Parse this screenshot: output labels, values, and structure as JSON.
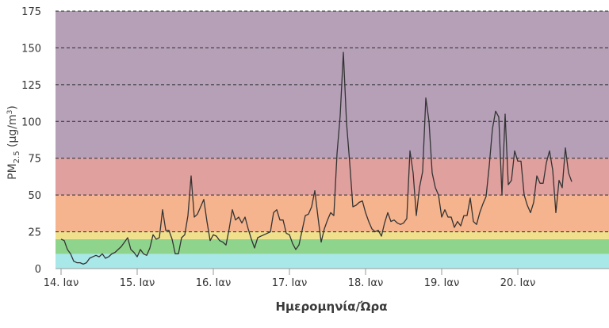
{
  "chart_data": {
    "type": "line",
    "xlabel": "Ημερομηνία/Ώρα",
    "ylabel": "PM",
    "ylabel_sub": "2.5",
    "ylabel_unit_pre": " (μg/m",
    "ylabel_unit_sup": "3",
    "ylabel_unit_post": ")",
    "ylim": [
      0,
      175
    ],
    "xlim": [
      0,
      167
    ],
    "grid": "dashed horizontal",
    "yticks": [
      0,
      25,
      50,
      75,
      100,
      125,
      150,
      175
    ],
    "xticks": [
      {
        "label": "14. Ιαν",
        "x": 0
      },
      {
        "label": "15. Ιαν",
        "x": 24
      },
      {
        "label": "16. Ιαν",
        "x": 48
      },
      {
        "label": "17. Ιαν",
        "x": 72
      },
      {
        "label": "18. Ιαν",
        "x": 96
      },
      {
        "label": "19. Ιαν",
        "x": 120
      },
      {
        "label": "20. Ιαν",
        "x": 144
      }
    ],
    "bands": [
      {
        "from": 0,
        "to": 10,
        "color": "#a8e8e8"
      },
      {
        "from": 10,
        "to": 20,
        "color": "#8fd48c"
      },
      {
        "from": 20,
        "to": 25,
        "color": "#f0e08c"
      },
      {
        "from": 25,
        "to": 50,
        "color": "#f5b48e"
      },
      {
        "from": 50,
        "to": 75,
        "color": "#e0a09e"
      },
      {
        "from": 75,
        "to": 175,
        "color": "#b5a0b8"
      }
    ],
    "series": [
      {
        "color": "#333333",
        "values": [
          20,
          19,
          13,
          10,
          5,
          4,
          4,
          3,
          4,
          7,
          8,
          9,
          8,
          10,
          7,
          8,
          10,
          11,
          13,
          15,
          18,
          21,
          13,
          11,
          8,
          13,
          10,
          9,
          14,
          23,
          20,
          21,
          40,
          26,
          26,
          20,
          10,
          10,
          21,
          23,
          36,
          63,
          35,
          37,
          42,
          47,
          32,
          19,
          23,
          22,
          19,
          18,
          16,
          27,
          40,
          33,
          35,
          31,
          35,
          27,
          20,
          14,
          21,
          22,
          23,
          24,
          25,
          38,
          40,
          33,
          33,
          24,
          23,
          17,
          13,
          16,
          26,
          36,
          37,
          42,
          53,
          35,
          18,
          27,
          33,
          38,
          36,
          78,
          104,
          147,
          99,
          72,
          42,
          43,
          45,
          46,
          38,
          32,
          27,
          25,
          26,
          22,
          31,
          38,
          32,
          33,
          31,
          30,
          31,
          34,
          80,
          65,
          36,
          55,
          66,
          116,
          100,
          65,
          55,
          50,
          35,
          40,
          35,
          35,
          28,
          32,
          29,
          36,
          36,
          48,
          32,
          30,
          38,
          44,
          49,
          70,
          95,
          107,
          103,
          50,
          105,
          57,
          60,
          80,
          73,
          73,
          50,
          43,
          38,
          45,
          63,
          58,
          58,
          72,
          80,
          67,
          38,
          60,
          55,
          82,
          65,
          59
        ]
      }
    ]
  }
}
